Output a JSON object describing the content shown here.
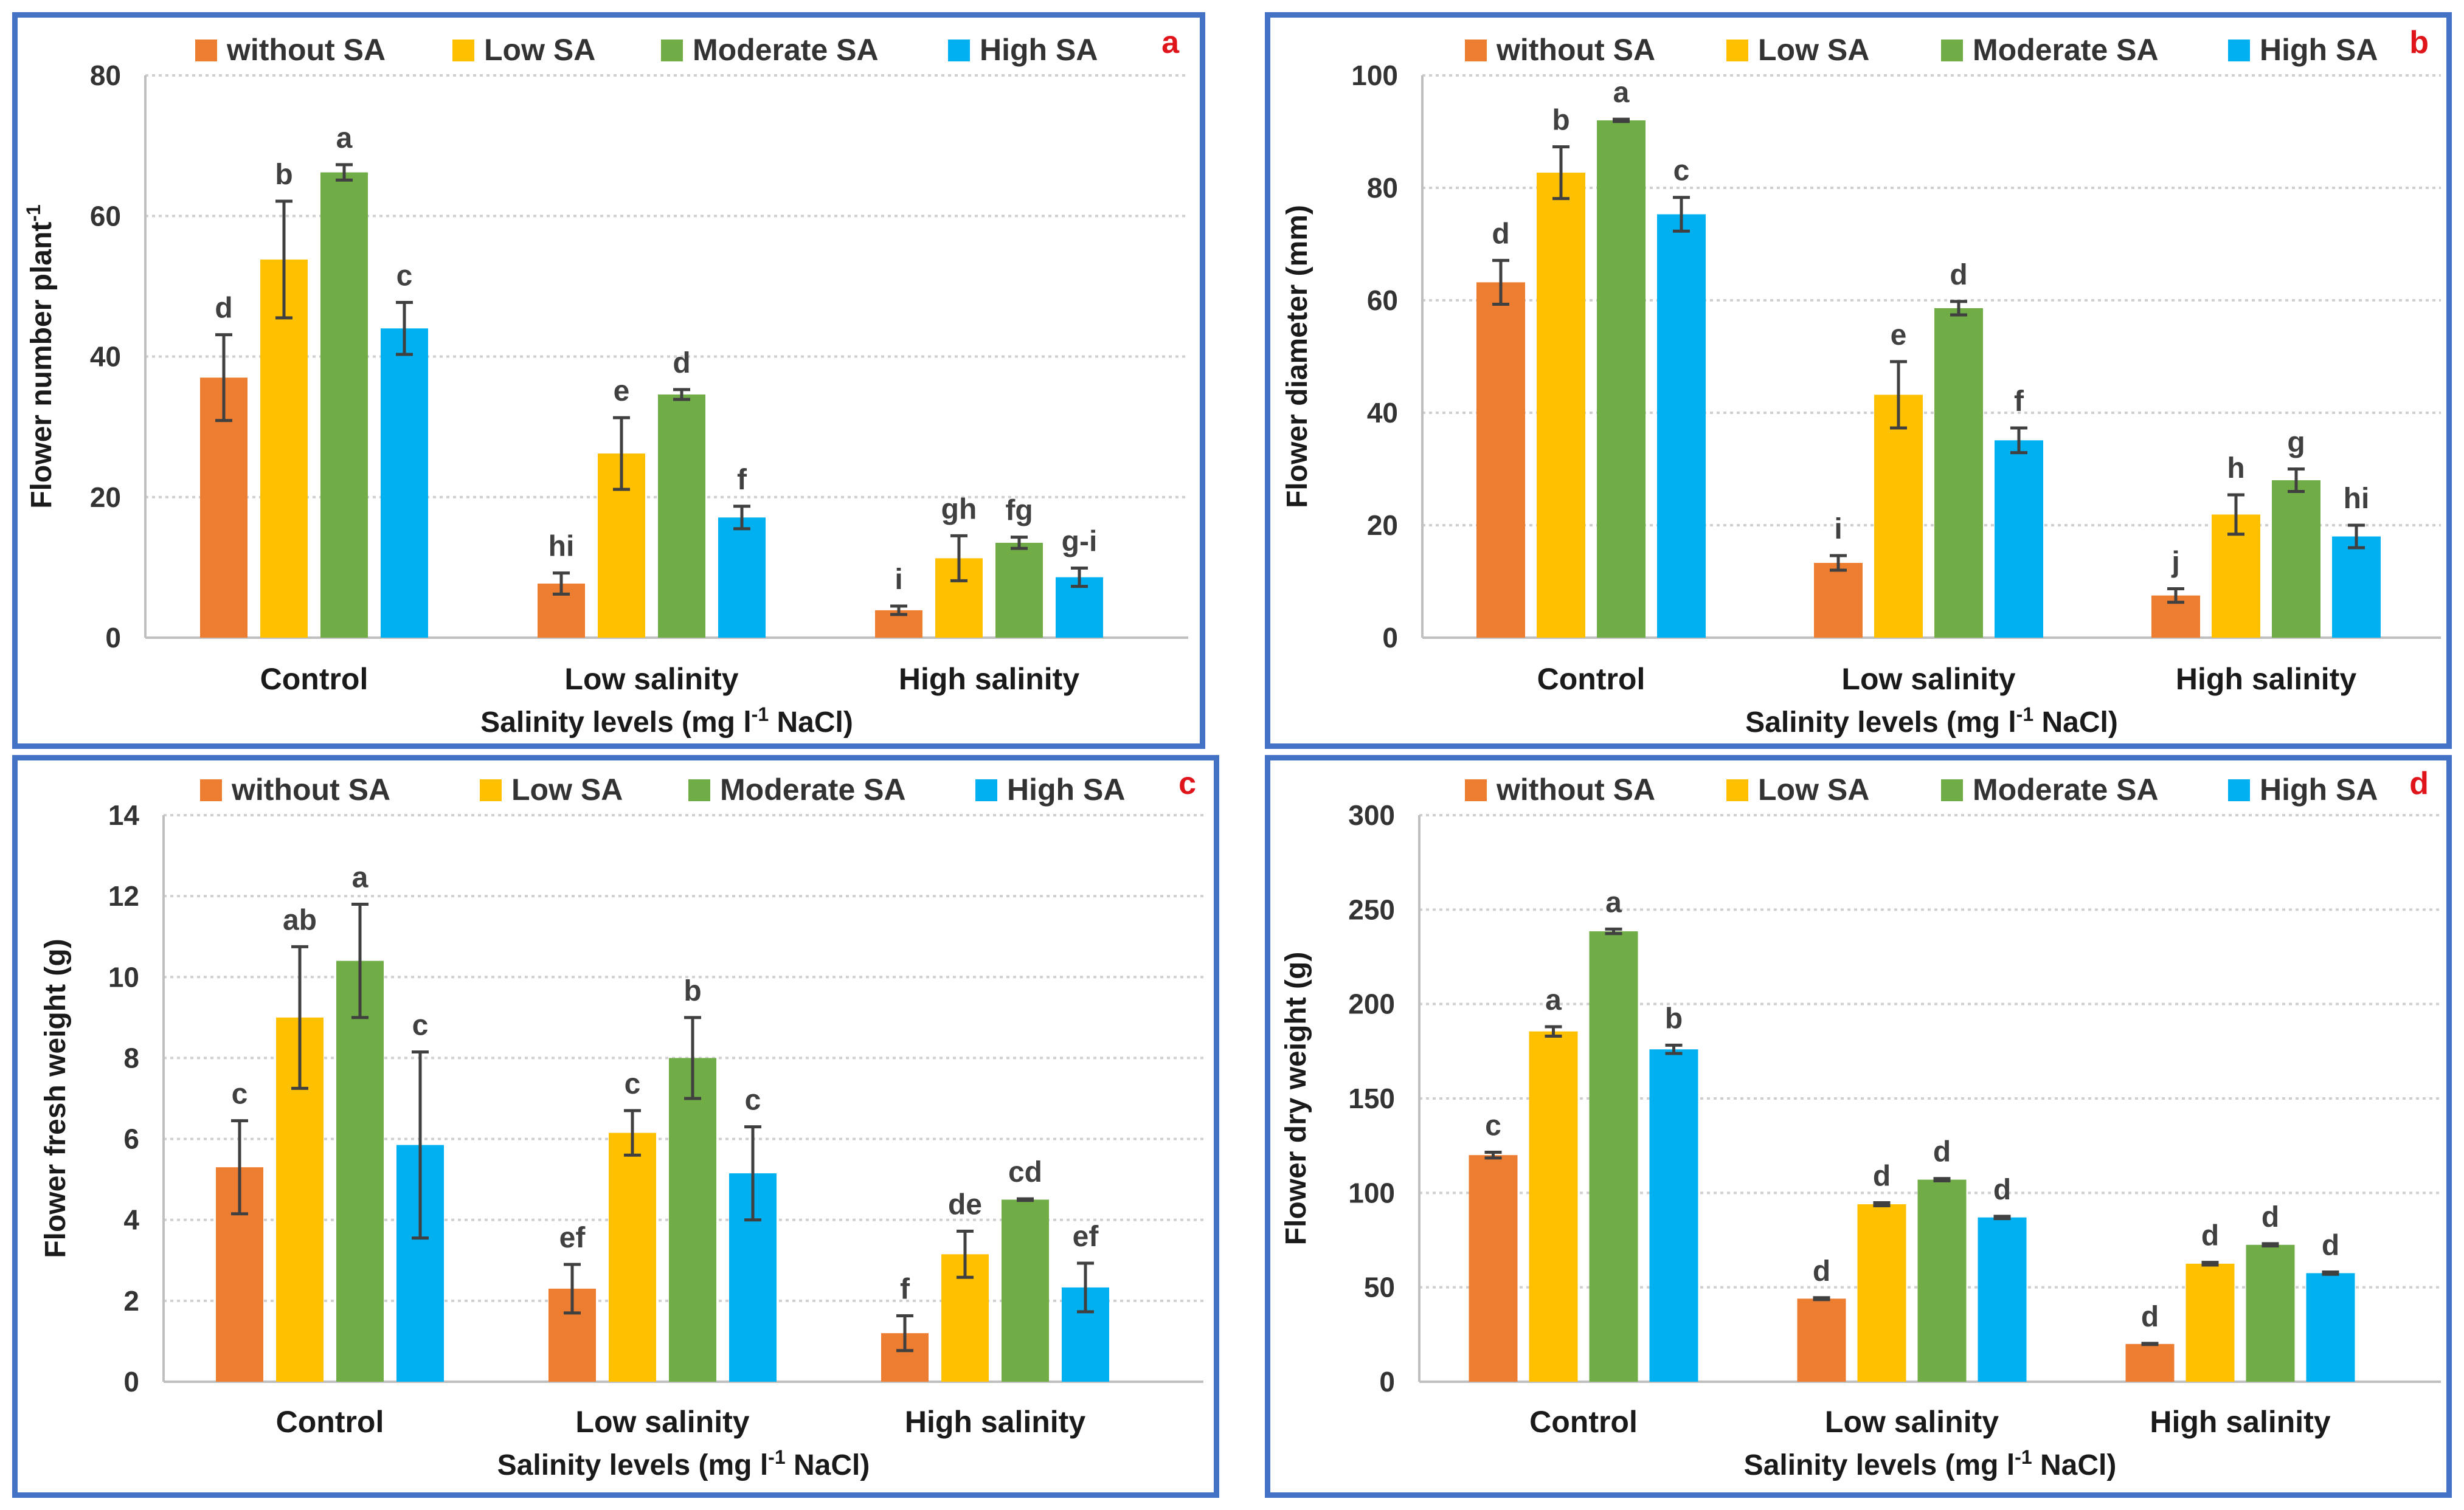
{
  "colors": {
    "without_sa": "#ED7D31",
    "low_sa": "#FFC000",
    "moderate_sa": "#70AD47",
    "high_sa": "#00B0F0",
    "frame": "#4472C4",
    "panel_letter": "#E0151B"
  },
  "chart_data": [
    {
      "type": "bar",
      "panel_letter": "a",
      "categories": [
        "Control",
        "Low salinity",
        "High salinity"
      ],
      "xlabel": "Salinity levels (mg l-1 NaCl)",
      "xlabel_parts": {
        "pre": "Salinity levels (mg l",
        "sup": "-1",
        "post": " NaCl)"
      },
      "ylabel": "Flower number plant-1",
      "ylabel_parts": {
        "pre": "Flower number plant",
        "sup": "-1",
        "post": ""
      },
      "ylim": [
        0,
        80
      ],
      "yticks": [
        0,
        20,
        40,
        60,
        80
      ],
      "grid": true,
      "legend_position": "top",
      "series": [
        {
          "name": "without SA",
          "values": [
            37,
            7.7,
            3.9
          ],
          "errors": [
            6.1,
            1.5,
            0.6
          ],
          "letters": [
            "d",
            "hi",
            "i"
          ]
        },
        {
          "name": "Low SA",
          "values": [
            53.8,
            26.2,
            11.3
          ],
          "errors": [
            8.3,
            5.1,
            3.2
          ],
          "letters": [
            "b",
            "e",
            "gh"
          ]
        },
        {
          "name": "Moderate SA",
          "values": [
            66.2,
            34.6,
            13.5
          ],
          "errors": [
            1.1,
            0.7,
            0.8
          ],
          "letters": [
            "a",
            "d",
            "fg"
          ]
        },
        {
          "name": "High SA",
          "values": [
            44,
            17.1,
            8.6
          ],
          "errors": [
            3.7,
            1.6,
            1.3
          ],
          "letters": [
            "c",
            "f",
            "g-i"
          ]
        }
      ]
    },
    {
      "type": "bar",
      "panel_letter": "b",
      "categories": [
        "Control",
        "Low salinity",
        "High salinity"
      ],
      "xlabel": "Salinity levels (mg l-1 NaCl)",
      "xlabel_parts": {
        "pre": "Salinity levels (mg l",
        "sup": "-1",
        "post": " NaCl)"
      },
      "ylabel": "Flower diameter (mm)",
      "ylabel_parts": {
        "pre": "Flower diameter (mm)",
        "sup": "",
        "post": ""
      },
      "ylim": [
        0,
        100
      ],
      "yticks": [
        0,
        20,
        40,
        60,
        80,
        100
      ],
      "grid": true,
      "legend_position": "top",
      "series": [
        {
          "name": "without SA",
          "values": [
            63.2,
            13.3,
            7.5
          ],
          "errors": [
            3.9,
            1.3,
            1.2
          ],
          "letters": [
            "d",
            "i",
            "j"
          ]
        },
        {
          "name": "Low SA",
          "values": [
            82.7,
            43.2,
            21.9
          ],
          "errors": [
            4.6,
            5.9,
            3.5
          ],
          "letters": [
            "b",
            "e",
            "h"
          ]
        },
        {
          "name": "Moderate SA",
          "values": [
            92,
            58.6,
            28
          ],
          "errors": [
            0.2,
            1.2,
            2
          ],
          "letters": [
            "a",
            "d",
            "g"
          ]
        },
        {
          "name": "High SA",
          "values": [
            75.3,
            35.1,
            18
          ],
          "errors": [
            3,
            2.2,
            2
          ],
          "letters": [
            "c",
            "f",
            "hi"
          ]
        }
      ]
    },
    {
      "type": "bar",
      "panel_letter": "c",
      "categories": [
        "Control",
        "Low salinity",
        "High salinity"
      ],
      "xlabel": "Salinity levels (mg l-1 NaCl)",
      "xlabel_parts": {
        "pre": "Salinity levels (mg l",
        "sup": "-1",
        "post": " NaCl)"
      },
      "ylabel": "Flower fresh weight (g)",
      "ylabel_parts": {
        "pre": "Flower fresh weight (g)",
        "sup": "",
        "post": ""
      },
      "ylim": [
        0,
        14
      ],
      "yticks": [
        0,
        2,
        4,
        6,
        8,
        10,
        12,
        14
      ],
      "grid": true,
      "legend_position": "top",
      "series": [
        {
          "name": "without SA",
          "values": [
            5.3,
            2.3,
            1.2
          ],
          "errors": [
            1.15,
            0.6,
            0.43
          ],
          "letters": [
            "c",
            "ef",
            "f"
          ]
        },
        {
          "name": "Low SA",
          "values": [
            9,
            6.15,
            3.15
          ],
          "errors": [
            1.75,
            0.55,
            0.57
          ],
          "letters": [
            "ab",
            "c",
            "de"
          ]
        },
        {
          "name": "Moderate SA",
          "values": [
            10.4,
            8,
            4.5
          ],
          "errors": [
            1.4,
            1,
            0.02
          ],
          "letters": [
            "a",
            "b",
            "cd"
          ]
        },
        {
          "name": "High SA",
          "values": [
            5.85,
            5.15,
            2.33
          ],
          "errors": [
            2.3,
            1.15,
            0.6
          ],
          "letters": [
            "c",
            "c",
            "ef"
          ]
        }
      ]
    },
    {
      "type": "bar",
      "panel_letter": "d",
      "categories": [
        "Control",
        "Low salinity",
        "High salinity"
      ],
      "xlabel": "Salinity levels (mg l-1 NaCl)",
      "xlabel_parts": {
        "pre": "Salinity levels (mg l",
        "sup": "-1",
        "post": " NaCl)"
      },
      "ylabel": "Flower dry weight (g)",
      "ylabel_parts": {
        "pre": "Flower dry weight (g)",
        "sup": "",
        "post": ""
      },
      "ylim": [
        0,
        300
      ],
      "yticks": [
        0,
        50,
        100,
        150,
        200,
        250,
        300
      ],
      "grid": true,
      "legend_position": "top",
      "series": [
        {
          "name": "without SA",
          "values": [
            120,
            44,
            20
          ],
          "errors": [
            1.5,
            0.5,
            0.3
          ],
          "letters": [
            "c",
            "d",
            "d"
          ]
        },
        {
          "name": "Low SA",
          "values": [
            185.5,
            94,
            62.5
          ],
          "errors": [
            2.5,
            0.8,
            0.7
          ],
          "letters": [
            "a",
            "d",
            "d"
          ]
        },
        {
          "name": "Moderate SA",
          "values": [
            238.5,
            107,
            72.5
          ],
          "errors": [
            1.2,
            0.6,
            0.6
          ],
          "letters": [
            "a",
            "d",
            "d"
          ]
        },
        {
          "name": "High SA",
          "values": [
            176,
            87,
            57.5
          ],
          "errors": [
            2.2,
            0.6,
            0.6
          ],
          "letters": [
            "b",
            "d",
            "d"
          ]
        }
      ]
    }
  ]
}
